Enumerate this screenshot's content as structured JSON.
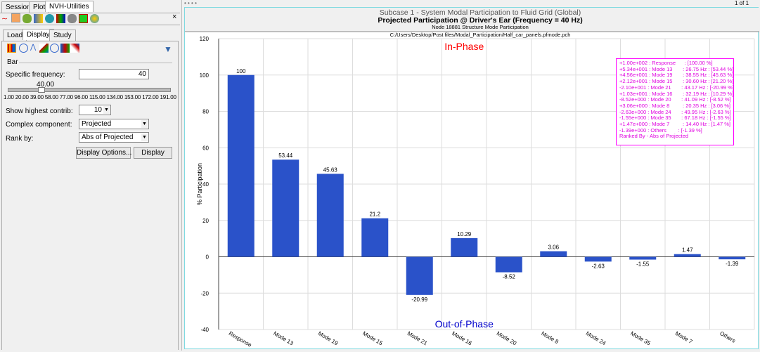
{
  "top_tabs": [
    "Session",
    "Plot",
    "NVH-Utilities"
  ],
  "sub_tabs": [
    "Load",
    "Display",
    "Study"
  ],
  "page_indicator": "1 of 1",
  "panel": {
    "section": "Bar",
    "specific_frequency_label": "Specific frequency:",
    "specific_frequency_value": "40",
    "slider_value_label": "40.00",
    "slider_value": 40,
    "slider_range": [
      1,
      210
    ],
    "slider_ticks": [
      "1.00",
      "20.00",
      "39.00",
      "58.00",
      "77.00",
      "96.00",
      "115.00",
      "134.00",
      "153.00",
      "172.00",
      "191.00"
    ],
    "show_highest_label": "Show highest contrib:",
    "show_highest_value": "10",
    "complex_label": "Complex component:",
    "complex_value": "Projected",
    "rank_label": "Rank by:",
    "rank_value": "Abs of Projected",
    "display_options_btn": "Display Options...",
    "display_btn": "Display"
  },
  "chart_data": {
    "type": "bar",
    "title": "Subcase 1 - System Modal Participation to Fluid Grid (Global)",
    "subtitle": "Projected Participation @ Driver's Ear (Frequency = 40 Hz)",
    "subtitle2": "Node 18881 Structure Mode Participation",
    "file": "C:/Users/Desktop/Post files/Modal_Participation/Half_car_panels.pfmode.pch",
    "ylabel": "% Participation",
    "ylim": [
      -40,
      120
    ],
    "yticks": [
      -40,
      -20,
      0,
      20,
      40,
      60,
      80,
      100,
      120
    ],
    "categories": [
      "Response",
      "Mode 13",
      "Mode 19",
      "Mode 15",
      "Mode 21",
      "Mode 16",
      "Mode 20",
      "Mode 8",
      "Mode 24",
      "Mode 35",
      "Mode 7",
      "Others"
    ],
    "values": [
      100,
      53.44,
      45.63,
      21.2,
      -20.99,
      10.29,
      -8.52,
      3.06,
      -2.63,
      -1.55,
      1.47,
      -1.39
    ],
    "labels": [
      "100",
      "53.44",
      "45.63",
      "21.2",
      "-20.99",
      "10.29",
      "-8.52",
      "3.06",
      "-2.63",
      "-1.55",
      "1.47",
      "-1.39"
    ],
    "annotation_top": "In-Phase",
    "annotation_bottom": "Out-of-Phase",
    "bar_color": "#2a52c9",
    "legend_lines": [
      "+1.00e+002 : Response      : [100.00 %]",
      "+5.34e+001 : Mode 13       : 26.75 Hz : [53.44 %]",
      "+4.56e+001 : Mode 19       : 38.55 Hz : [45.63 %]",
      "+2.12e+001 : Mode 15       : 30.60 Hz : [21.20 %]",
      "-2.10e+001 : Mode 21       : 43.17 Hz : [-20.99 %]",
      "+1.03e+001 : Mode 16       : 32.19 Hz : [10.29 %]",
      "-8.52e+000 : Mode 20       : 41.09 Hz : [-8.52 %]",
      "+3.06e+000 : Mode 8         : 20.35 Hz : [3.06 %]",
      "-2.63e+000 : Mode 24       : 49.95 Hz : [-2.63 %]",
      "-1.55e+000 : Mode 35       : 67.18 Hz : [-1.55 %]",
      "+1.47e+000 : Mode 7         : 14.40 Hz : [1.47 %]",
      "-1.39e+000 : Others        : [-1.39 %]",
      "Ranked By - Abs of Projected"
    ]
  }
}
